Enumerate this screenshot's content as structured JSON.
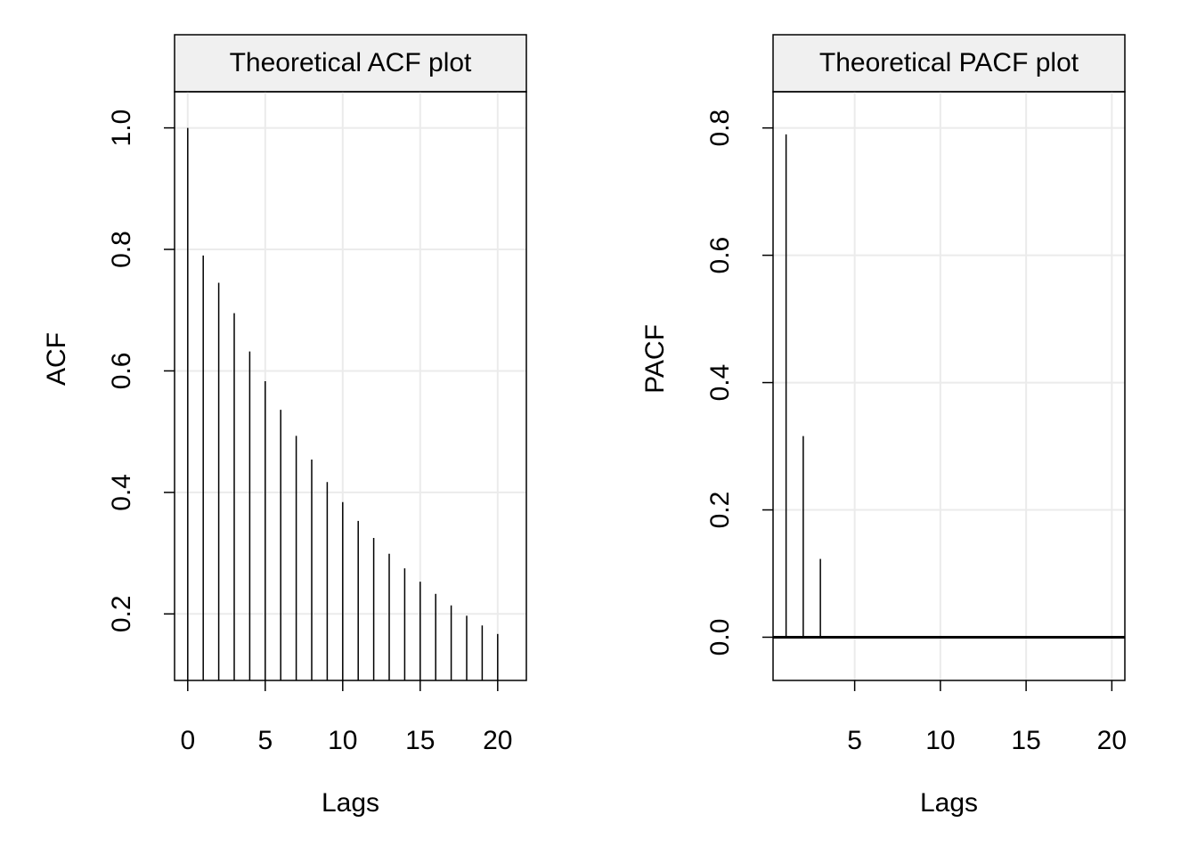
{
  "chart_data": [
    {
      "type": "bar",
      "title": "Theoretical ACF plot",
      "xlabel": "Lags",
      "ylabel": "ACF",
      "x": [
        0,
        1,
        2,
        3,
        4,
        5,
        6,
        7,
        8,
        9,
        10,
        11,
        12,
        13,
        14,
        15,
        16,
        17,
        18,
        19,
        20
      ],
      "values": [
        1.0,
        0.79,
        0.745,
        0.695,
        0.632,
        0.583,
        0.536,
        0.493,
        0.454,
        0.417,
        0.384,
        0.353,
        0.325,
        0.299,
        0.275,
        0.253,
        0.233,
        0.214,
        0.197,
        0.181,
        0.167
      ],
      "xlim": [
        -0.85,
        21.85
      ],
      "ylim": [
        0.0905,
        1.0595
      ],
      "xticks": [
        0,
        5,
        10,
        15,
        20
      ],
      "yticks": [
        0.2,
        0.4,
        0.6,
        0.8,
        1.0
      ],
      "xtick_labels": [
        "0",
        "5",
        "10",
        "15",
        "20"
      ],
      "ytick_labels": [
        "0.2",
        "0.4",
        "0.6",
        "0.8",
        "1.0"
      ],
      "grid": true
    },
    {
      "type": "bar",
      "title": "Theoretical PACF plot",
      "xlabel": "Lags",
      "ylabel": "PACF",
      "x": [
        1,
        2,
        3,
        4,
        5,
        6,
        7,
        8,
        9,
        10,
        11,
        12,
        13,
        14,
        15,
        16,
        17,
        18,
        19,
        20
      ],
      "values": [
        0.79,
        0.316,
        0.123,
        0,
        0,
        0,
        0,
        0,
        0,
        0,
        0,
        0,
        0,
        0,
        0,
        0,
        0,
        0,
        0,
        0
      ],
      "xlim": [
        0.24,
        20.76
      ],
      "ylim": [
        -0.0679,
        0.8569
      ],
      "xticks": [
        5,
        10,
        15,
        20
      ],
      "yticks": [
        0.0,
        0.2,
        0.4,
        0.6,
        0.8
      ],
      "xtick_labels": [
        "5",
        "10",
        "15",
        "20"
      ],
      "ytick_labels": [
        "0.0",
        "0.2",
        "0.4",
        "0.6",
        "0.8"
      ],
      "zero_line": true,
      "grid": true
    }
  ]
}
